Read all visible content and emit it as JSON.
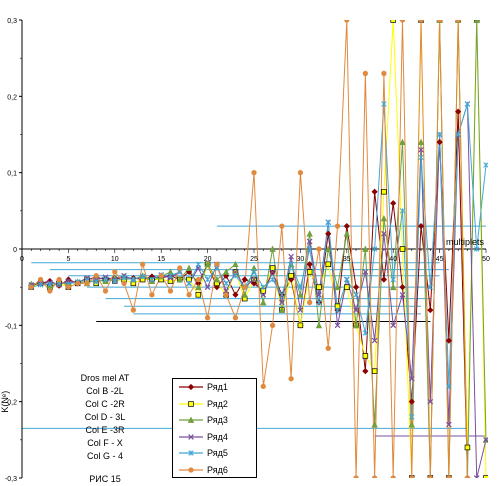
{
  "chart_data": {
    "type": "line",
    "ylabel": "K(Nᵉ)",
    "xlabel": "multiplets",
    "xlim": [
      0,
      50
    ],
    "ylim": [
      -0.3,
      0.3
    ],
    "x_ticks": [
      "0",
      "5",
      "10",
      "15",
      "20",
      "25",
      "30",
      "35",
      "40",
      "45",
      "50"
    ],
    "y_ticks": [
      "0,3",
      "0,2",
      "0,1",
      "0",
      "-0,1",
      "-0,2",
      "-0,3"
    ],
    "annotations": [
      "Dros mel AT",
      "Col B -2L",
      "Col C -2R",
      "Col D - 3L",
      "Col E -3R",
      "Col F - X",
      "Col G - 4",
      "РИС 15"
    ],
    "legend_position": "bottom-center",
    "series": [
      {
        "name": "Ряд1",
        "color": "#8b0000",
        "marker": "diamond",
        "x": [
          1,
          2,
          3,
          4,
          5,
          6,
          7,
          8,
          9,
          10,
          11,
          12,
          13,
          14,
          15,
          16,
          17,
          18,
          19,
          20,
          21,
          22,
          23,
          24,
          25,
          26,
          27,
          28,
          29,
          30,
          31,
          32,
          33,
          34,
          35,
          36,
          37,
          38,
          39,
          40,
          41,
          42,
          43,
          44,
          45,
          46,
          47,
          48
        ],
        "values": [
          -0.048,
          -0.045,
          -0.042,
          -0.048,
          -0.04,
          -0.045,
          -0.04,
          -0.037,
          -0.04,
          -0.038,
          -0.04,
          -0.038,
          -0.04,
          -0.036,
          -0.038,
          -0.035,
          -0.04,
          -0.03,
          -0.045,
          -0.02,
          -0.05,
          -0.035,
          -0.06,
          -0.04,
          -0.045,
          -0.055,
          -0.03,
          -0.06,
          -0.04,
          -0.1,
          -0.02,
          -0.07,
          0.02,
          -0.08,
          0.03,
          -0.05,
          -0.16,
          0.075,
          -0.04,
          0.06,
          -0.05,
          -0.2,
          0.03,
          -0.08,
          0.14,
          -0.12,
          0.18,
          -0.3
        ]
      },
      {
        "name": "Ряд2",
        "color": "#ffff00",
        "marker": "square",
        "x": [
          1,
          2,
          3,
          4,
          5,
          6,
          7,
          8,
          9,
          10,
          11,
          12,
          13,
          14,
          15,
          16,
          17,
          18,
          19,
          20,
          21,
          22,
          23,
          24,
          25,
          26,
          27,
          28,
          29,
          30,
          31,
          32,
          33,
          34,
          35,
          36,
          37,
          38,
          39,
          40,
          41,
          42,
          43,
          44,
          45,
          46,
          47,
          48,
          49,
          50
        ],
        "values": [
          -0.05,
          -0.045,
          -0.05,
          -0.045,
          -0.05,
          -0.045,
          -0.04,
          -0.045,
          -0.04,
          -0.042,
          -0.04,
          -0.045,
          -0.04,
          -0.04,
          -0.04,
          -0.042,
          -0.04,
          -0.04,
          -0.06,
          -0.02,
          -0.045,
          -0.06,
          -0.03,
          -0.065,
          -0.04,
          -0.055,
          -0.025,
          -0.08,
          -0.035,
          -0.1,
          -0.03,
          -0.05,
          -0.02,
          -0.075,
          -0.05,
          -0.1,
          -0.14,
          -0.16,
          0.075,
          0.3,
          0.0,
          -0.3,
          0.3,
          -0.3,
          0.3,
          -0.3,
          0.3,
          -0.26,
          0.3,
          -0.3
        ]
      },
      {
        "name": "Ряд3",
        "color": "#70a040",
        "marker": "triangle",
        "x": [
          1,
          2,
          3,
          4,
          5,
          6,
          7,
          8,
          9,
          10,
          11,
          12,
          13,
          14,
          15,
          16,
          17,
          18,
          19,
          20,
          21,
          22,
          23,
          24,
          25,
          26,
          27,
          28,
          29,
          30,
          31,
          32,
          33,
          34,
          35,
          36,
          37,
          38,
          39,
          40,
          41,
          42,
          43,
          44,
          45,
          46,
          47,
          48,
          49,
          50
        ],
        "values": [
          -0.046,
          -0.044,
          -0.048,
          -0.046,
          -0.044,
          -0.043,
          -0.045,
          -0.04,
          -0.042,
          -0.038,
          -0.036,
          -0.04,
          -0.035,
          -0.042,
          -0.036,
          -0.03,
          -0.04,
          -0.025,
          -0.05,
          -0.02,
          -0.04,
          -0.03,
          -0.02,
          -0.06,
          -0.025,
          -0.07,
          0.0,
          -0.08,
          -0.02,
          -0.06,
          0.02,
          -0.1,
          0.0,
          -0.05,
          0.02,
          -0.1,
          0.0,
          -0.23,
          0.04,
          -0.05,
          0.14,
          -0.23,
          0.14,
          -0.3,
          0.3,
          -0.3,
          0.3,
          -0.3,
          0.3,
          -0.25
        ]
      },
      {
        "name": "Ряд4",
        "color": "#7a4fa0",
        "marker": "x",
        "x": [
          1,
          2,
          3,
          4,
          5,
          6,
          7,
          8,
          9,
          10,
          11,
          12,
          13,
          14,
          15,
          16,
          17,
          18,
          19,
          20,
          21,
          22,
          23,
          24,
          25,
          26,
          27,
          28,
          29,
          30,
          31,
          32,
          33,
          34,
          35,
          36,
          37,
          38,
          39,
          40,
          41,
          42,
          43,
          44,
          45,
          46,
          47,
          48,
          49,
          50
        ],
        "values": [
          -0.047,
          -0.045,
          -0.044,
          -0.047,
          -0.042,
          -0.044,
          -0.038,
          -0.04,
          -0.037,
          -0.04,
          -0.035,
          -0.04,
          -0.036,
          -0.04,
          -0.034,
          -0.038,
          -0.03,
          -0.045,
          -0.025,
          -0.05,
          -0.02,
          -0.055,
          -0.03,
          -0.05,
          -0.04,
          -0.06,
          -0.03,
          -0.07,
          -0.01,
          -0.08,
          0.01,
          -0.06,
          0.035,
          -0.1,
          -0.04,
          -0.08,
          -0.03,
          -0.12,
          0.02,
          -0.1,
          -0.06,
          -0.17,
          0.13,
          -0.2,
          0.15,
          -0.23,
          0.15,
          0.19,
          -0.3,
          -0.25
        ]
      },
      {
        "name": "Ряд5",
        "color": "#40a8d8",
        "marker": "star",
        "x": [
          1,
          2,
          3,
          4,
          5,
          6,
          7,
          8,
          9,
          10,
          11,
          12,
          13,
          14,
          15,
          16,
          17,
          18,
          19,
          20,
          21,
          22,
          23,
          24,
          25,
          26,
          27,
          28,
          29,
          30,
          31,
          32,
          33,
          34,
          35,
          36,
          37,
          38,
          39,
          40,
          41,
          42,
          43,
          44,
          45,
          46,
          47,
          48,
          49,
          50
        ],
        "values": [
          -0.05,
          -0.047,
          -0.046,
          -0.044,
          -0.046,
          -0.043,
          -0.041,
          -0.043,
          -0.04,
          -0.042,
          -0.038,
          -0.04,
          -0.036,
          -0.04,
          -0.034,
          -0.035,
          -0.03,
          -0.045,
          -0.02,
          -0.04,
          -0.025,
          -0.045,
          -0.035,
          -0.05,
          -0.03,
          -0.05,
          -0.04,
          -0.06,
          -0.02,
          -0.05,
          0.0,
          -0.07,
          0.035,
          -0.08,
          -0.04,
          -0.06,
          -0.11,
          0.0,
          0.19,
          -0.04,
          0.05,
          -0.22,
          0.12,
          -0.05,
          0.15,
          -0.18,
          0.15,
          0.19,
          0.0,
          0.11
        ]
      },
      {
        "name": "Ряд6",
        "color": "#e08a40",
        "marker": "circle",
        "x": [
          1,
          2,
          3,
          4,
          5,
          6,
          7,
          8,
          9,
          10,
          11,
          12,
          13,
          14,
          15,
          16,
          17,
          18,
          19,
          20,
          21,
          22,
          23,
          24,
          25,
          26,
          27,
          28,
          29,
          30,
          31,
          32,
          33,
          34,
          35,
          36,
          37,
          38,
          39,
          40,
          41,
          42,
          43,
          44,
          45,
          46,
          47,
          48
        ],
        "values": [
          -0.05,
          -0.04,
          -0.055,
          -0.04,
          -0.05,
          -0.045,
          -0.045,
          -0.035,
          -0.055,
          -0.03,
          -0.045,
          -0.08,
          -0.02,
          -0.06,
          -0.035,
          -0.055,
          -0.025,
          -0.06,
          -0.04,
          -0.09,
          -0.02,
          -0.06,
          -0.09,
          -0.05,
          0.1,
          -0.18,
          -0.1,
          0.03,
          -0.17,
          0.1,
          -0.07,
          0.0,
          -0.13,
          0.03,
          0.3,
          -0.3,
          0.23,
          -0.3,
          0.23,
          -0.3,
          0.3,
          -0.3,
          0.3,
          -0.3,
          0.3,
          -0.3,
          0.3,
          -0.3
        ]
      }
    ],
    "reference_lines": [
      {
        "color": "#40a8d8",
        "y": 0.03,
        "x": [
          21,
          50
        ]
      },
      {
        "color": "#40a8d8",
        "y": 0.0,
        "x": [
          13,
          50
        ]
      },
      {
        "color": "#40a8d8",
        "y": -0.018,
        "x": [
          1,
          45
        ]
      },
      {
        "color": "#40a8d8",
        "y": -0.027,
        "x": [
          3,
          46
        ]
      },
      {
        "color": "#40a8d8",
        "y": -0.035,
        "x": [
          5,
          45
        ]
      },
      {
        "color": "#40a8d8",
        "y": -0.05,
        "x": [
          7,
          44
        ]
      },
      {
        "color": "#40a8d8",
        "y": -0.065,
        "x": [
          9,
          44
        ]
      },
      {
        "color": "#40a8d8",
        "y": -0.075,
        "x": [
          11,
          43
        ]
      },
      {
        "color": "#40a8d8",
        "y": -0.085,
        "x": [
          12,
          43
        ]
      },
      {
        "color": "#000000",
        "y": -0.095,
        "x": [
          8,
          44
        ]
      },
      {
        "color": "#40a8d8",
        "y": -0.235,
        "x": [
          0,
          48
        ]
      },
      {
        "color": "#7a4fa0",
        "y": -0.245,
        "x": [
          38,
          50
        ]
      }
    ]
  }
}
